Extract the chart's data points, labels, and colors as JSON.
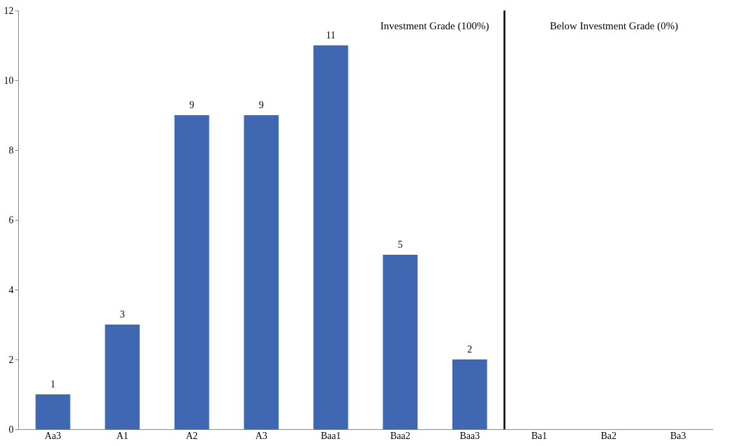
{
  "chart_data": {
    "type": "bar",
    "categories": [
      "Aa3",
      "A1",
      "A2",
      "A3",
      "Baa1",
      "Baa2",
      "Baa3",
      "Ba1",
      "Ba2",
      "Ba3"
    ],
    "values": [
      1,
      3,
      9,
      9,
      11,
      5,
      2,
      0,
      0,
      0
    ],
    "value_labels": [
      "1",
      "3",
      "9",
      "9",
      "11",
      "5",
      "2",
      null,
      null,
      null
    ],
    "color": "#4068b2",
    "ylim": [
      0,
      12
    ],
    "yticks": [
      0,
      2,
      4,
      6,
      8,
      10,
      12
    ],
    "grid": false,
    "annotations": [
      "Investment Grade (100%)",
      "Below Investment Grade (0%)"
    ]
  }
}
